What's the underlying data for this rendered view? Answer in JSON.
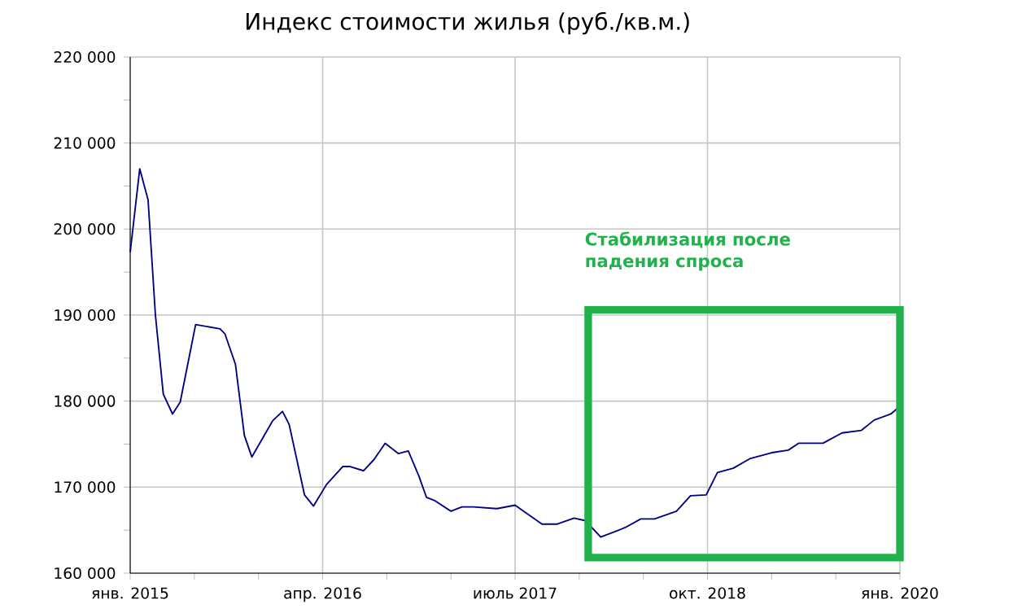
{
  "chart_data": {
    "type": "line",
    "title": "Индекс стоимости жилья (руб./кв.м.)",
    "x": [
      "2015-01-01",
      "2015-01-24",
      "2015-02-12",
      "2015-02-28",
      "2015-03-19",
      "2015-04-10",
      "2015-04-28",
      "2015-06-04",
      "2015-08-01",
      "2015-08-13",
      "2015-09-07",
      "2015-09-28",
      "2015-10-16",
      "2015-12-04",
      "2015-12-28",
      "2016-01-13",
      "2016-02-18",
      "2016-03-10",
      "2016-04-10",
      "2016-05-19",
      "2016-06-04",
      "2016-07-07",
      "2016-08-01",
      "2016-08-28",
      "2016-09-28",
      "2016-10-22",
      "2016-11-16",
      "2016-12-04",
      "2016-12-25",
      "2017-02-01",
      "2017-02-25",
      "2017-03-25",
      "2017-05-19",
      "2017-07-01",
      "2017-09-04",
      "2017-10-10",
      "2017-11-19",
      "2017-12-16",
      "2018-01-22",
      "2018-03-19",
      "2018-04-25",
      "2018-05-28",
      "2018-07-19",
      "2018-08-22",
      "2018-09-28",
      "2018-10-25",
      "2018-12-01",
      "2019-01-10",
      "2019-03-01",
      "2019-04-10",
      "2019-05-04",
      "2019-07-01",
      "2019-08-16",
      "2019-10-01",
      "2019-11-01",
      "2019-12-10",
      "2020-01-01"
    ],
    "series": [
      {
        "color": "#000080",
        "values": [
          197300,
          207000,
          203400,
          190000,
          180800,
          178500,
          179900,
          188900,
          188400,
          187800,
          184300,
          176000,
          173500,
          177700,
          178800,
          177300,
          169100,
          167800,
          170300,
          172400,
          172400,
          171900,
          173200,
          175100,
          173900,
          174200,
          171300,
          168800,
          168400,
          167200,
          167700,
          167700,
          167500,
          167900,
          165700,
          165700,
          166400,
          166100,
          164200,
          165300,
          166300,
          166300,
          167200,
          169000,
          169100,
          171700,
          172200,
          173300,
          174000,
          174300,
          175100,
          175100,
          176300,
          176600,
          177800,
          178500,
          179400
        ]
      }
    ],
    "xlim": [
      "2015-01-01",
      "2020-01-01"
    ],
    "xticks": [
      {
        "value": "2015-01-01",
        "label": "янв. 2015"
      },
      {
        "value": "2015-06-01",
        "label": null
      },
      {
        "value": "2015-11-01",
        "label": null
      },
      {
        "value": "2016-04-01",
        "label": "апр. 2016"
      },
      {
        "value": "2016-09-01",
        "label": null
      },
      {
        "value": "2017-02-01",
        "label": null
      },
      {
        "value": "2017-07-01",
        "label": "июль 2017"
      },
      {
        "value": "2017-12-01",
        "label": null
      },
      {
        "value": "2018-05-01",
        "label": null
      },
      {
        "value": "2018-10-01",
        "label": "окт. 2018"
      },
      {
        "value": "2019-03-01",
        "label": null
      },
      {
        "value": "2019-08-01",
        "label": null
      },
      {
        "value": "2020-01-01",
        "label": "янв. 2020"
      }
    ],
    "ylim": [
      160000,
      220000
    ],
    "yticks": [
      {
        "value": 160000,
        "label": "160 000"
      },
      {
        "value": 165000,
        "label": null
      },
      {
        "value": 170000,
        "label": "170 000"
      },
      {
        "value": 175000,
        "label": null
      },
      {
        "value": 180000,
        "label": "180 000"
      },
      {
        "value": 185000,
        "label": null
      },
      {
        "value": 190000,
        "label": "190 000"
      },
      {
        "value": 195000,
        "label": null
      },
      {
        "value": 200000,
        "label": "200 000"
      },
      {
        "value": 205000,
        "label": null
      },
      {
        "value": 210000,
        "label": "210 000"
      },
      {
        "value": 215000,
        "label": null
      },
      {
        "value": 220000,
        "label": "220 000"
      }
    ],
    "grid": true,
    "line_style": "solid",
    "marker": "none",
    "annotations": [
      "Стабилизация после падения спроса"
    ]
  }
}
